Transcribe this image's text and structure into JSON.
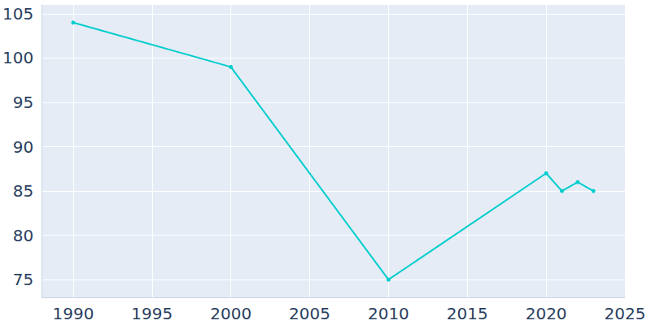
{
  "chart_data": {
    "type": "line",
    "x": [
      1990,
      2000,
      2010,
      2020,
      2021,
      2022,
      2023
    ],
    "values": [
      104,
      99,
      75,
      87,
      85,
      86,
      85
    ],
    "color": "#00cdcd",
    "marker": "circle",
    "xlim": [
      1988,
      2025
    ],
    "xticks": [
      1990,
      1995,
      2000,
      2005,
      2010,
      2015,
      2020,
      2025
    ],
    "ylim": [
      73,
      106
    ],
    "yticks": [
      75,
      80,
      85,
      90,
      95,
      100,
      105
    ],
    "grid": true
  }
}
